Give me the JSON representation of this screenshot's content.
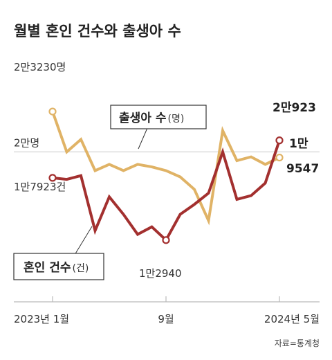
{
  "title": "월별 혼인 건수와 출생아 수",
  "source": "자료=통계청",
  "colors": {
    "births": "#e0b366",
    "marriages": "#a3302f",
    "axis": "#bbbbbb",
    "gridline": "#c8c8c8"
  },
  "chart_data": {
    "type": "line",
    "categories": [
      "2023-01",
      "2023-02",
      "2023-03",
      "2023-04",
      "2023-05",
      "2023-06",
      "2023-07",
      "2023-08",
      "2023-09",
      "2023-10",
      "2023-11",
      "2023-12",
      "2024-01",
      "2024-02",
      "2024-03",
      "2024-04",
      "2024-05"
    ],
    "x_tick_labels": [
      "2023년 1월",
      "9월",
      "2024년 5월"
    ],
    "reference_line_label": "2만명",
    "reference_line_value": 20000,
    "ylim": [
      8000,
      28000
    ],
    "series": [
      {
        "name": "출생아 수",
        "unit": "(명)",
        "values": [
          23230,
          20000,
          21000,
          18500,
          19000,
          18500,
          19000,
          18800,
          18500,
          18000,
          17000,
          14500,
          21700,
          19300,
          19600,
          19000,
          19547
        ]
      },
      {
        "name": "혼인 건수",
        "unit": "(건)",
        "values": [
          17923,
          17800,
          18100,
          13700,
          16400,
          15000,
          13400,
          14000,
          12940,
          15000,
          15800,
          16700,
          20000,
          16200,
          16500,
          17500,
          20923
        ]
      }
    ],
    "annotations": {
      "births_start": "2만3230명",
      "births_end_line1": "1만",
      "births_end_line2": "9547",
      "marriages_start": "1만7923건",
      "marriages_min": "1만2940",
      "marriages_end": "2만923"
    },
    "grid": false
  }
}
